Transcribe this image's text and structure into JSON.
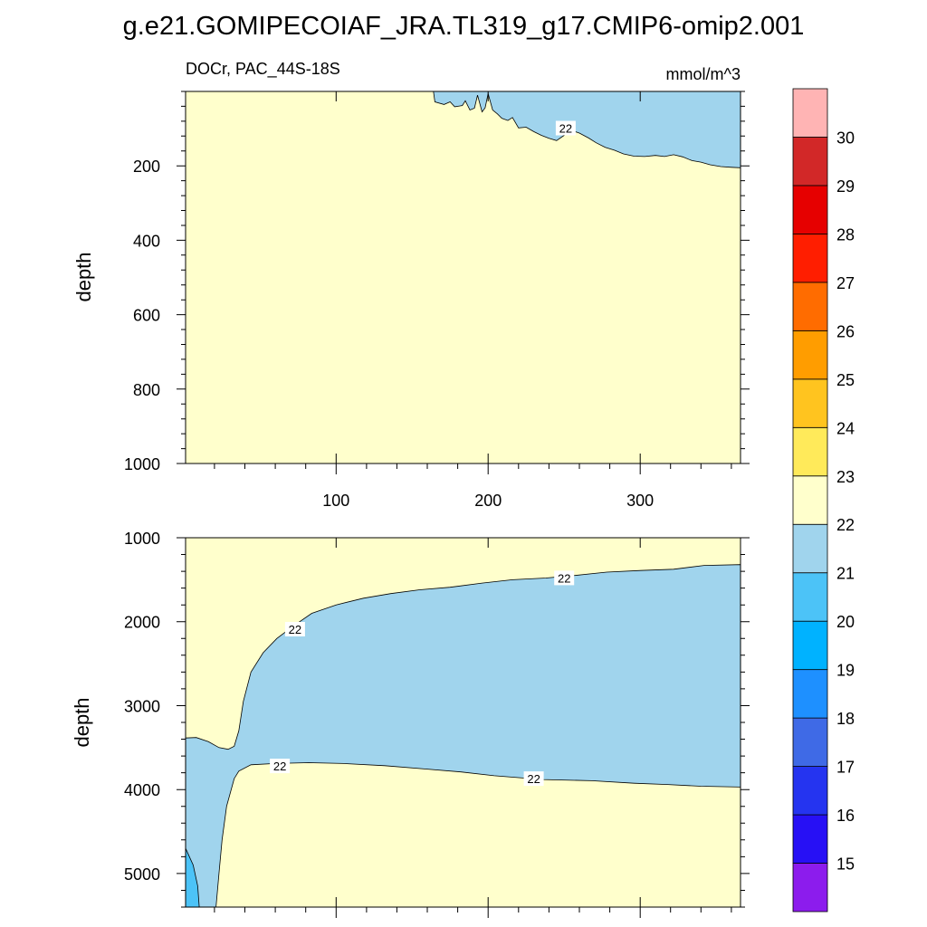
{
  "title": "g.e21.GOMIPECOIAF_JRA.TL319_g17.CMIP6-omip2.001",
  "chart_data": [
    {
      "type": "contour",
      "panel": "upper",
      "left_label": "DOCr, PAC_44S-18S",
      "right_label": "mmol/m^3",
      "ylabel": "depth",
      "xlabel": "",
      "xlim": [
        1,
        366
      ],
      "ylim": [
        1000,
        0
      ],
      "x_ticks": [
        100,
        200,
        300
      ],
      "y_ticks": [
        200,
        400,
        600,
        800,
        1000
      ],
      "background_level": "22-23",
      "regions": [
        {
          "level": "21-22",
          "boundary": [
            [
              164,
              0
            ],
            [
              165,
              28
            ],
            [
              171,
              35
            ],
            [
              175,
              28
            ],
            [
              178,
              41
            ],
            [
              183,
              38
            ],
            [
              185,
              25
            ],
            [
              188,
              50
            ],
            [
              191,
              45
            ],
            [
              193,
              10
            ],
            [
              196,
              55
            ],
            [
              198,
              44
            ],
            [
              200,
              6
            ],
            [
              203,
              50
            ],
            [
              206,
              60
            ],
            [
              209,
              72
            ],
            [
              213,
              78
            ],
            [
              216,
              70
            ],
            [
              220,
              98
            ],
            [
              225,
              96
            ],
            [
              230,
              108
            ],
            [
              235,
              118
            ],
            [
              240,
              126
            ],
            [
              245,
              132
            ],
            [
              250,
              118
            ],
            [
              255,
              105
            ],
            [
              260,
              112
            ],
            [
              266,
              125
            ],
            [
              271,
              138
            ],
            [
              277,
              150
            ],
            [
              283,
              158
            ],
            [
              289,
              168
            ],
            [
              296,
              174
            ],
            [
              303,
              175
            ],
            [
              310,
              172
            ],
            [
              316,
              175
            ],
            [
              322,
              170
            ],
            [
              328,
              176
            ],
            [
              334,
              186
            ],
            [
              340,
              190
            ],
            [
              346,
              197
            ],
            [
              353,
              202
            ],
            [
              360,
              204
            ],
            [
              366,
              205
            ],
            [
              366,
              0
            ]
          ]
        }
      ],
      "contour_labels": [
        {
          "text": "22",
          "x": 251,
          "y": 101
        }
      ]
    },
    {
      "type": "contour",
      "panel": "lower",
      "left_label": "",
      "right_label": "",
      "ylabel": "depth",
      "xlabel": "",
      "xlim": [
        1,
        366
      ],
      "ylim": [
        5400,
        1000
      ],
      "x_ticks": [
        100,
        200,
        300
      ],
      "y_ticks": [
        1000,
        2000,
        3000,
        4000,
        5000
      ],
      "background_level": "22-23",
      "regions": [
        {
          "level": "21-22",
          "boundary": [
            [
              1,
              3385
            ],
            [
              8,
              3380
            ],
            [
              16,
              3430
            ],
            [
              23,
              3500
            ],
            [
              29,
              3520
            ],
            [
              33,
              3485
            ],
            [
              36,
              3300
            ],
            [
              39,
              2950
            ],
            [
              44,
              2600
            ],
            [
              52,
              2370
            ],
            [
              61,
              2200
            ],
            [
              72,
              2050
            ],
            [
              84,
              1900
            ],
            [
              100,
              1800
            ],
            [
              118,
              1720
            ],
            [
              136,
              1665
            ],
            [
              155,
              1620
            ],
            [
              175,
              1590
            ],
            [
              196,
              1540
            ],
            [
              216,
              1500
            ],
            [
              238,
              1480
            ],
            [
              257,
              1450
            ],
            [
              278,
              1410
            ],
            [
              300,
              1390
            ],
            [
              322,
              1375
            ],
            [
              342,
              1330
            ],
            [
              366,
              1320
            ],
            [
              366,
              3970
            ],
            [
              340,
              3960
            ],
            [
              318,
              3940
            ],
            [
              296,
              3925
            ],
            [
              268,
              3895
            ],
            [
              236,
              3880
            ],
            [
              204,
              3835
            ],
            [
              182,
              3790
            ],
            [
              159,
              3755
            ],
            [
              132,
              3715
            ],
            [
              105,
              3690
            ],
            [
              82,
              3680
            ],
            [
              60,
              3690
            ],
            [
              44,
              3705
            ],
            [
              36,
              3780
            ],
            [
              33,
              3870
            ],
            [
              28,
              4200
            ],
            [
              25,
              4600
            ],
            [
              23,
              5000
            ],
            [
              21,
              5400
            ],
            [
              1,
              5400
            ]
          ]
        },
        {
          "level": "20-21",
          "boundary": [
            [
              1,
              4700
            ],
            [
              6,
              4900
            ],
            [
              9,
              5150
            ],
            [
              10,
              5400
            ],
            [
              1,
              5400
            ]
          ]
        }
      ],
      "contour_labels": [
        {
          "text": "22",
          "x": 73,
          "y": 2100
        },
        {
          "text": "22",
          "x": 250,
          "y": 1490
        },
        {
          "text": "22",
          "x": 63,
          "y": 3730
        },
        {
          "text": "22",
          "x": 230,
          "y": 3880
        }
      ]
    }
  ],
  "colorbar": {
    "levels": [
      15,
      16,
      17,
      18,
      19,
      20,
      21,
      22,
      23,
      24,
      25,
      26,
      27,
      28,
      29,
      30
    ],
    "colors": [
      "#8c1ced",
      "#2710f5",
      "#2534f0",
      "#3f6ae6",
      "#1e90ff",
      "#00b2ff",
      "#4cc3f7",
      "#a0d4ed",
      "#ffffcc",
      "#ffea5a",
      "#ffc41f",
      "#ff9d00",
      "#ff6c00",
      "#ff1e00",
      "#e60000",
      "#d22828",
      "#ffb4b4"
    ]
  }
}
